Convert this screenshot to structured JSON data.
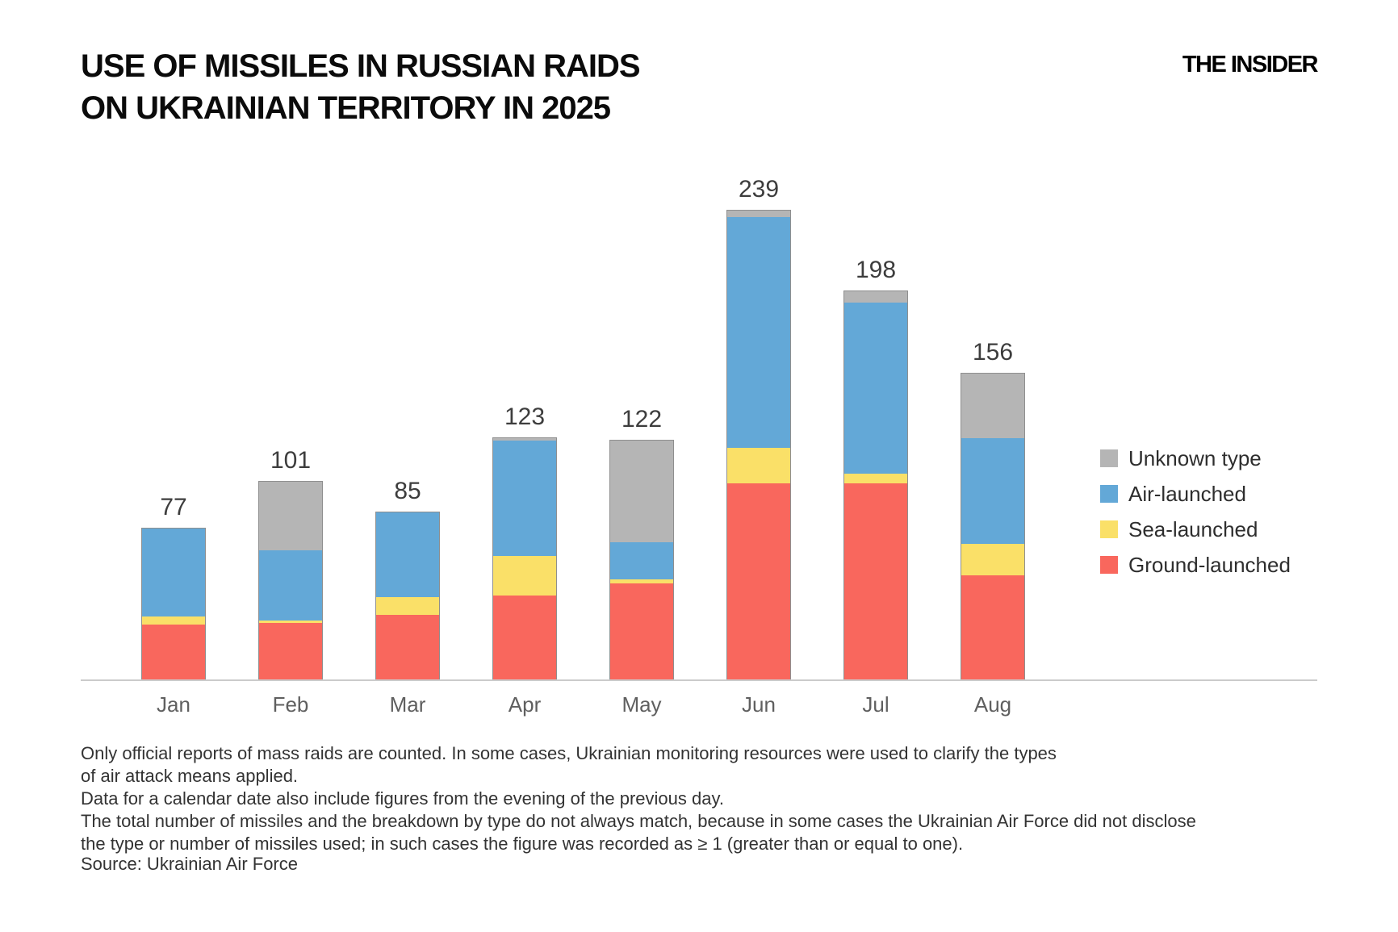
{
  "header": {
    "title_line1": "USE OF MISSILES IN RUSSIAN RAIDS",
    "title_line2": "ON UKRAINIAN TERRITORY IN 2025",
    "logo": "THE INSIDER"
  },
  "legend": {
    "items": [
      {
        "label": "Unknown type",
        "color": "#B5B5B5"
      },
      {
        "label": "Air-launched",
        "color": "#63A8D7"
      },
      {
        "label": "Sea-launched",
        "color": "#FAE068"
      },
      {
        "label": "Ground-launched",
        "color": "#F9675D"
      }
    ]
  },
  "notes": {
    "lines": [
      "Only official reports of mass raids are counted. In some cases, Ukrainian monitoring resources were used to clarify the types",
      "of air attack means applied.",
      "Data for a calendar date also include figures from the evening of the previous day.",
      "The total number of missiles and the breakdown by type do not always match, because in some cases the Ukrainian Air Force did not disclose",
      "the type or number of missiles used; in such cases the figure was recorded as ≥ 1 (greater than or equal to one)."
    ],
    "source": "Source: Ukrainian Air Force"
  },
  "chart_data": {
    "type": "bar",
    "stacked": true,
    "title": "USE OF MISSILES IN RUSSIAN RAIDS ON UKRAINIAN TERRITORY IN 2025",
    "categories": [
      "Jan",
      "Feb",
      "Mar",
      "Apr",
      "May",
      "Jun",
      "Jul",
      "Aug"
    ],
    "totals": [
      77,
      101,
      85,
      123,
      122,
      239,
      198,
      156
    ],
    "series": [
      {
        "name": "Ground-launched",
        "color": "#F9675D",
        "values": [
          28,
          29,
          33,
          43,
          49,
          100,
          100,
          53
        ]
      },
      {
        "name": "Sea-launched",
        "color": "#FAE068",
        "values": [
          4,
          1,
          9,
          20,
          2,
          18,
          5,
          16
        ]
      },
      {
        "name": "Air-launched",
        "color": "#63A8D7",
        "values": [
          45,
          36,
          43,
          59,
          19,
          118,
          87,
          54
        ]
      },
      {
        "name": "Unknown type",
        "color": "#B5B5B5",
        "values": [
          0,
          35,
          0,
          1,
          52,
          3,
          6,
          33
        ]
      }
    ],
    "ylim": [
      0,
      250
    ],
    "grid": false,
    "y_axis_hidden": true,
    "legend_position": "right",
    "data_labels": "totals above bars"
  }
}
